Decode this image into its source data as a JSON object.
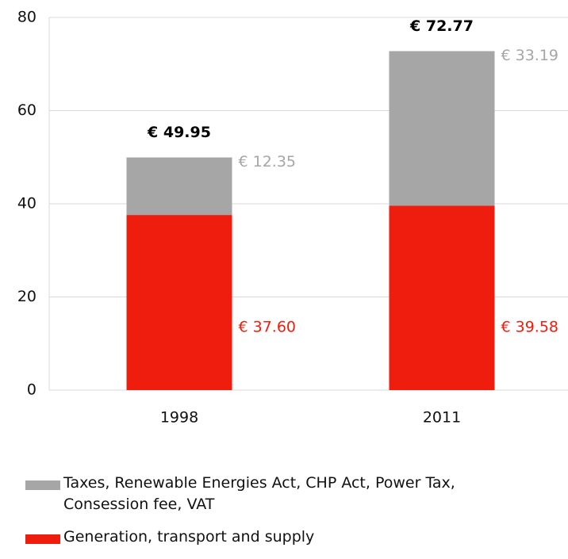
{
  "chart_data": {
    "type": "stacked_bar",
    "categories": [
      "1998",
      "2011"
    ],
    "series": [
      {
        "name": "Generation, transport and supply",
        "color": "#ee1d0e",
        "values": [
          37.6,
          39.58
        ],
        "value_labels": [
          "€ 37.60",
          "€ 39.58"
        ]
      },
      {
        "name": "Taxes, Renewable Energies Act, CHP Act, Power Tax, Consession fee, VAT",
        "color": "#a6a6a6",
        "values": [
          12.35,
          33.19
        ],
        "value_labels": [
          "€ 12.35",
          "€ 33.19"
        ]
      }
    ],
    "totals": [
      49.95,
      72.77
    ],
    "total_labels": [
      "€ 49.95",
      "€ 72.77"
    ],
    "ylim": [
      0,
      80
    ],
    "yticks": [
      0,
      20,
      40,
      60,
      80
    ],
    "grid": true
  }
}
